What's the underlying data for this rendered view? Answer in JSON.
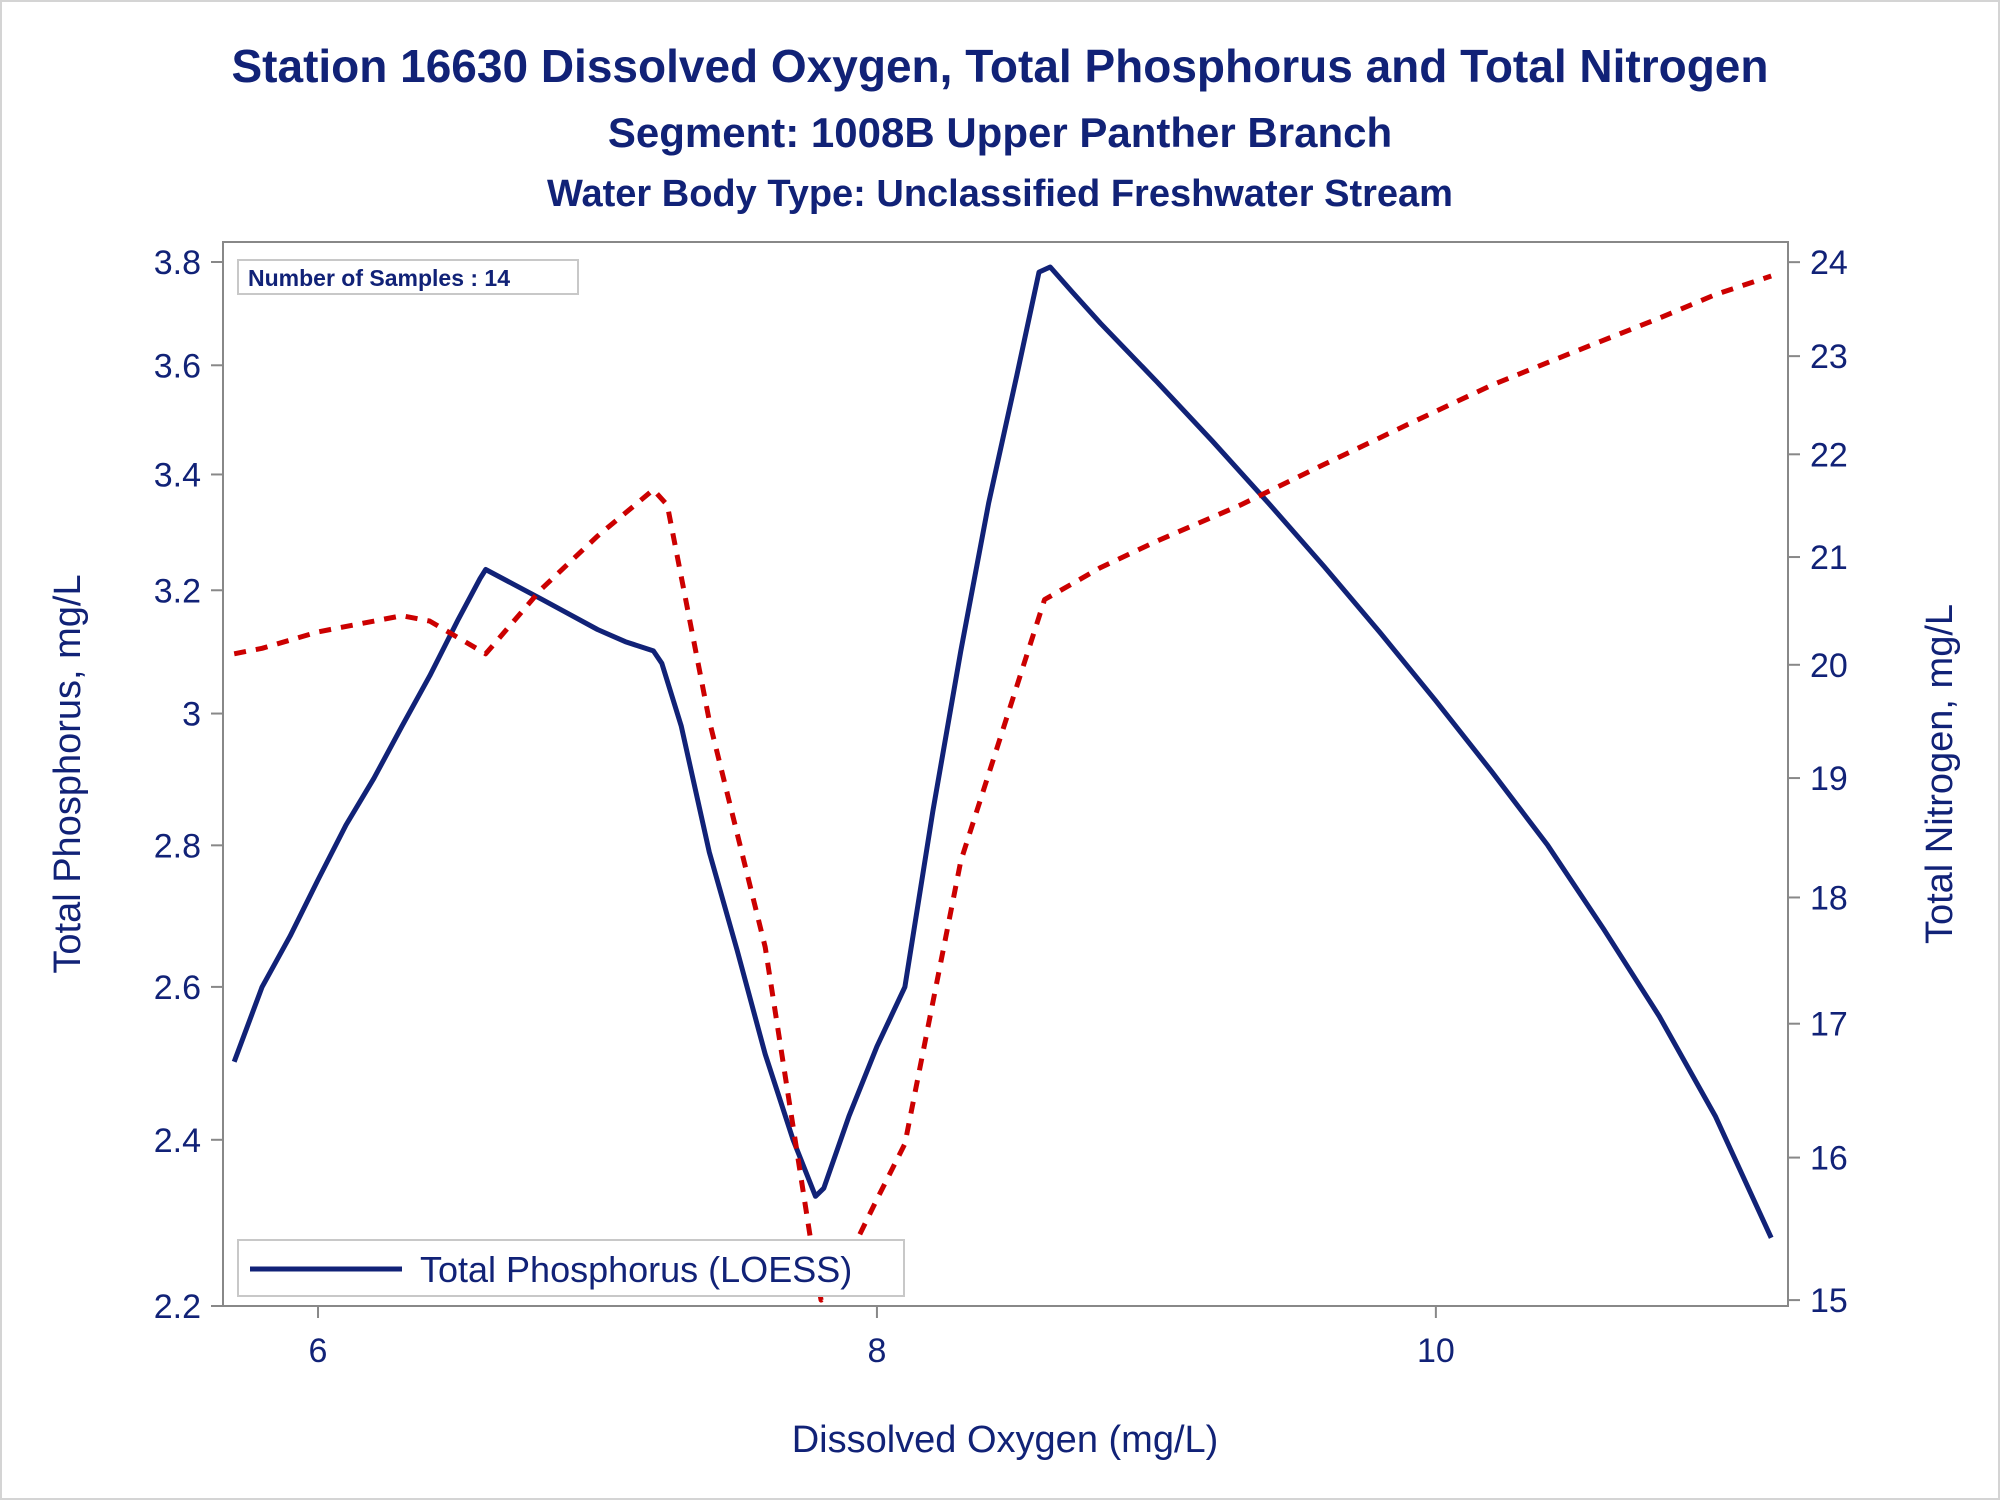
{
  "chart_data": {
    "type": "line",
    "title": "Station 16630  Dissolved Oxygen, Total Phosphorus and Total Nitrogen",
    "subtitle": "Segment: 1008B  Upper Panther Branch",
    "subtitle2": "Water Body Type: Unclassified Freshwater Stream",
    "annotation": "Number of Samples : 14",
    "xlabel": "Dissolved Oxygen (mg/L)",
    "ylabel": "Total Phosphorus, mg/L",
    "y2label": "Total Nitrogen, mg/L",
    "xlim": [
      5.66,
      11.26
    ],
    "ylim": [
      2.2,
      3.84
    ],
    "y2lim": [
      14.96,
      24.22
    ],
    "y_scale": "log",
    "y2_scale": "log",
    "x_ticks": [
      "6",
      "8",
      "10"
    ],
    "y_ticks": [
      "2.2",
      "2.4",
      "2.6",
      "2.8",
      "3",
      "3.2",
      "3.4",
      "3.6",
      "3.8"
    ],
    "y2_ticks": [
      "15",
      "16",
      "17",
      "18",
      "19",
      "20",
      "21",
      "22",
      "23",
      "24"
    ],
    "legend": {
      "position": "bottom-left",
      "entries": [
        "Total Phosphorus (LOESS)"
      ]
    },
    "grid": false,
    "colors": {
      "phosphorus": "#112277",
      "nitrogen": "#cc0000",
      "text": "#112277",
      "axis": "#888888"
    },
    "series": [
      {
        "name": "Total Phosphorus (LOESS)",
        "axis": "left",
        "style": "solid",
        "x": [
          5.7,
          5.8,
          5.9,
          6.0,
          6.1,
          6.2,
          6.3,
          6.4,
          6.5,
          6.58,
          6.6,
          6.7,
          6.8,
          6.9,
          7.0,
          7.1,
          7.2,
          7.23,
          7.3,
          7.4,
          7.5,
          7.6,
          7.7,
          7.78,
          7.81,
          7.9,
          8.0,
          8.1,
          8.2,
          8.3,
          8.4,
          8.5,
          8.58,
          8.62,
          8.7,
          8.8,
          9.0,
          9.2,
          9.4,
          9.6,
          9.8,
          10.0,
          10.2,
          10.4,
          10.6,
          10.8,
          11.0,
          11.2
        ],
        "values": [
          2.5,
          2.6,
          2.67,
          2.75,
          2.83,
          2.9,
          2.98,
          3.06,
          3.15,
          3.22,
          3.235,
          3.21,
          3.185,
          3.16,
          3.135,
          3.115,
          3.1,
          3.08,
          2.98,
          2.79,
          2.65,
          2.51,
          2.4,
          2.33,
          2.34,
          2.43,
          2.52,
          2.6,
          2.85,
          3.1,
          3.35,
          3.58,
          3.78,
          3.79,
          3.74,
          3.68,
          3.57,
          3.46,
          3.35,
          3.24,
          3.13,
          3.02,
          2.91,
          2.8,
          2.68,
          2.56,
          2.43,
          2.28
        ]
      },
      {
        "name": "",
        "axis": "right",
        "style": "dashed",
        "x": [
          5.7,
          5.8,
          6.0,
          6.3,
          6.4,
          6.6,
          6.8,
          7.0,
          7.2,
          7.25,
          7.4,
          7.6,
          7.78,
          7.8,
          7.9,
          8.0,
          8.1,
          8.3,
          8.6,
          8.8,
          9.0,
          9.3,
          9.6,
          9.9,
          10.2,
          10.5,
          10.8,
          11.0,
          11.2
        ],
        "values": [
          20.1,
          20.15,
          20.3,
          20.45,
          20.4,
          20.1,
          20.7,
          21.2,
          21.65,
          21.5,
          19.5,
          17.6,
          15.2,
          15.0,
          15.3,
          15.7,
          16.1,
          18.3,
          20.6,
          20.9,
          21.15,
          21.5,
          21.9,
          22.3,
          22.7,
          23.05,
          23.4,
          23.65,
          23.85
        ]
      }
    ]
  }
}
